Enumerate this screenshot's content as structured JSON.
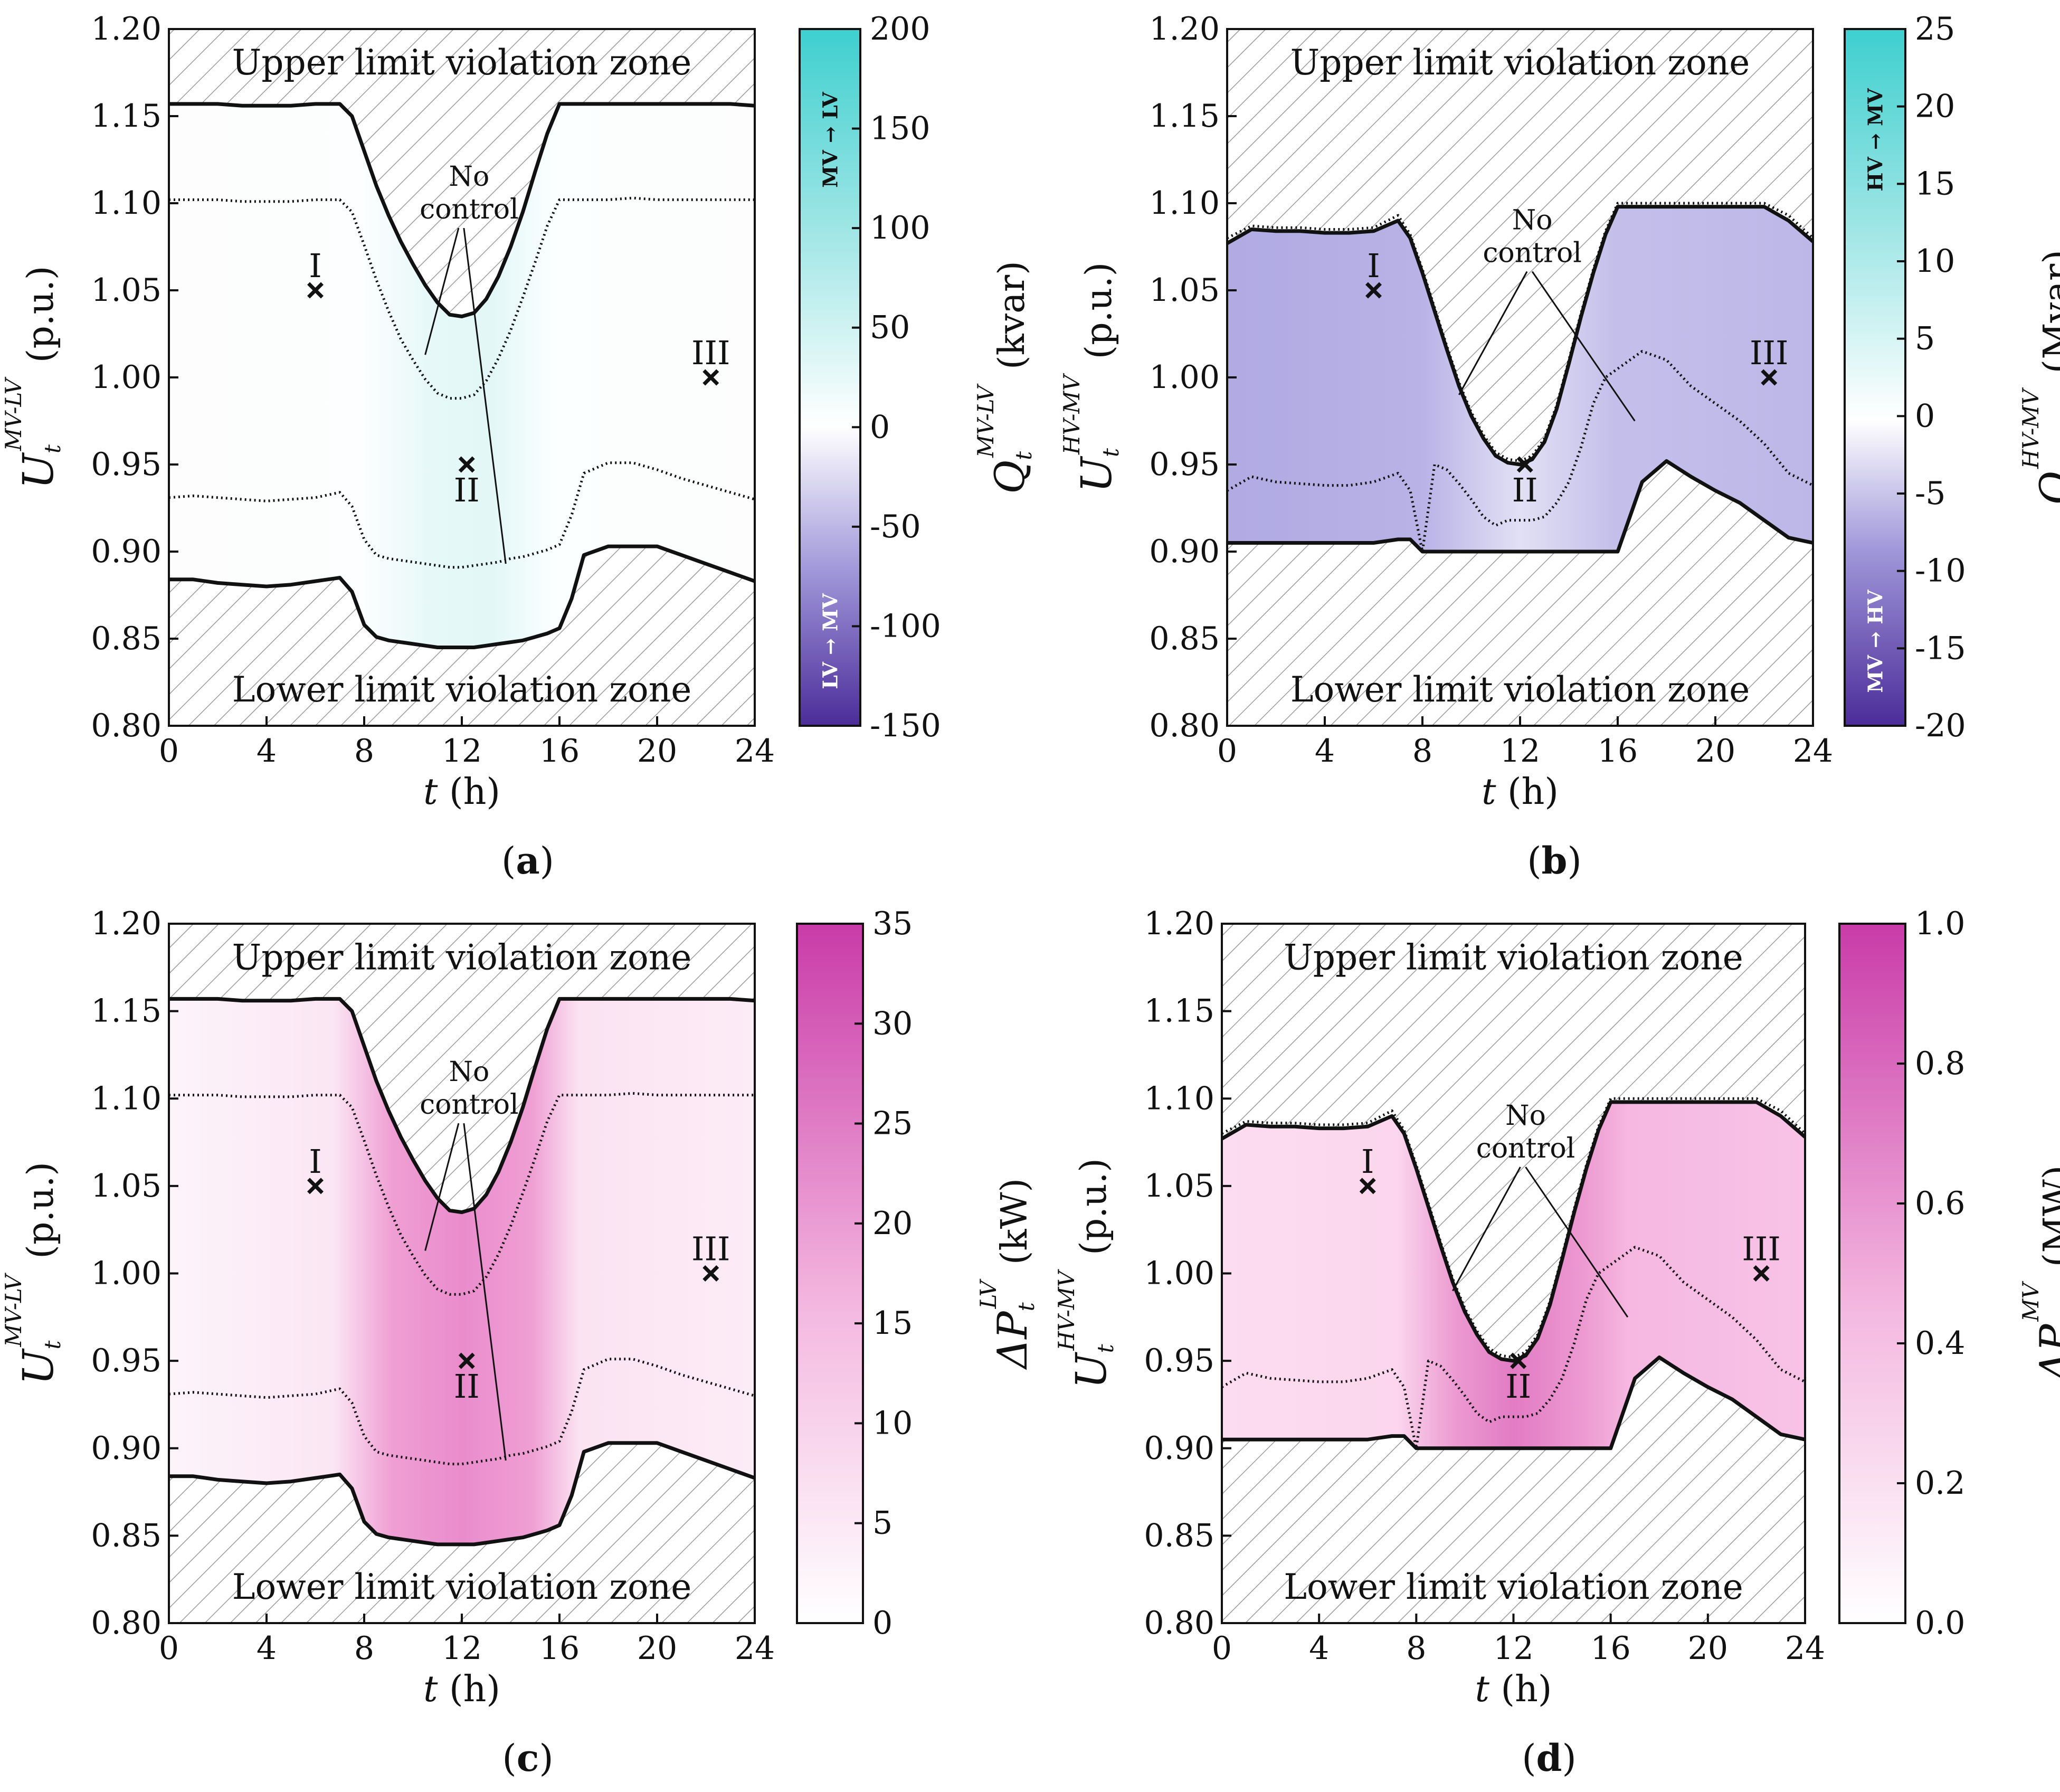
{
  "chart_data": [
    {
      "id": "a",
      "type": "area",
      "caption": "(a)",
      "xlabel": "t (h)",
      "ylabel_main": "U",
      "ylabel_sub": "t",
      "ylabel_sup": "MV-LV",
      "ylabel_unit": "(p.u.)",
      "xlim": [
        0,
        24
      ],
      "ylim": [
        0.8,
        1.2
      ],
      "xticks": [
        "0",
        "4",
        "8",
        "12",
        "16",
        "20",
        "24"
      ],
      "yticks": [
        "0.80",
        "0.85",
        "0.90",
        "0.95",
        "1.00",
        "1.05",
        "1.10",
        "1.15",
        "1.20"
      ],
      "upper_zone_label": "Upper limit violation zone",
      "lower_zone_label": "Lower limit violation zone",
      "annotation": [
        "No",
        "control"
      ],
      "points": [
        {
          "label": "I",
          "x": 6,
          "y": 1.05
        },
        {
          "label": "II",
          "x": 12.2,
          "y": 0.95
        },
        {
          "label": "III",
          "x": 22.2,
          "y": 1.0
        }
      ],
      "x": [
        0,
        1,
        2,
        3,
        4,
        5,
        6,
        7,
        7.5,
        8,
        8.5,
        9,
        9.5,
        10,
        10.5,
        11,
        11.5,
        12,
        12.5,
        13,
        13.5,
        14,
        14.5,
        15,
        15.5,
        16,
        16.5,
        17,
        18,
        19,
        20,
        21,
        22,
        23,
        24
      ],
      "upper_control": [
        1.157,
        1.157,
        1.157,
        1.156,
        1.156,
        1.156,
        1.157,
        1.157,
        1.15,
        1.13,
        1.11,
        1.093,
        1.078,
        1.065,
        1.053,
        1.043,
        1.036,
        1.035,
        1.037,
        1.045,
        1.058,
        1.075,
        1.095,
        1.118,
        1.14,
        1.157,
        1.157,
        1.157,
        1.157,
        1.157,
        1.157,
        1.157,
        1.157,
        1.157,
        1.156
      ],
      "lower_control": [
        0.884,
        0.884,
        0.882,
        0.881,
        0.88,
        0.881,
        0.883,
        0.885,
        0.877,
        0.858,
        0.851,
        0.849,
        0.848,
        0.847,
        0.846,
        0.845,
        0.845,
        0.845,
        0.845,
        0.846,
        0.847,
        0.848,
        0.849,
        0.851,
        0.853,
        0.856,
        0.873,
        0.898,
        0.903,
        0.903,
        0.903,
        0.898,
        0.893,
        0.888,
        0.883
      ],
      "upper_nocontrol": [
        1.102,
        1.102,
        1.102,
        1.101,
        1.101,
        1.101,
        1.102,
        1.102,
        1.095,
        1.076,
        1.056,
        1.038,
        1.022,
        1.01,
        0.999,
        0.991,
        0.988,
        0.988,
        0.99,
        0.998,
        1.011,
        1.027,
        1.046,
        1.066,
        1.087,
        1.102,
        1.102,
        1.102,
        1.102,
        1.103,
        1.102,
        1.102,
        1.102,
        1.102,
        1.102
      ],
      "lower_nocontrol": [
        0.931,
        0.932,
        0.931,
        0.93,
        0.929,
        0.93,
        0.931,
        0.934,
        0.926,
        0.907,
        0.898,
        0.896,
        0.895,
        0.894,
        0.893,
        0.892,
        0.891,
        0.891,
        0.892,
        0.893,
        0.894,
        0.896,
        0.897,
        0.899,
        0.901,
        0.904,
        0.921,
        0.945,
        0.951,
        0.951,
        0.947,
        0.942,
        0.938,
        0.934,
        0.93
      ],
      "colorbar": {
        "label_main": "Q",
        "label_sub": "t",
        "label_sup": "MV-LV",
        "label_unit": "(kvar)",
        "range": [
          -150,
          200
        ],
        "ticks": [
          "200",
          "150",
          "100",
          "50",
          "0",
          "-50",
          "-100",
          "-150"
        ],
        "top_text": "MV → LV",
        "bottom_text": "LV → MV",
        "colors": [
          "#4b2c99",
          "#9f96d9",
          "#ffffff",
          "#9de5e5",
          "#3ecfcf"
        ]
      }
    },
    {
      "id": "b",
      "type": "area",
      "caption": "(b)",
      "xlabel": "t (h)",
      "ylabel_main": "U",
      "ylabel_sub": "t",
      "ylabel_sup": "HV-MV",
      "ylabel_unit": "(p.u.)",
      "xlim": [
        0,
        24
      ],
      "ylim": [
        0.8,
        1.2
      ],
      "xticks": [
        "0",
        "4",
        "8",
        "12",
        "16",
        "20",
        "24"
      ],
      "yticks": [
        "0.80",
        "0.85",
        "0.90",
        "0.95",
        "1.00",
        "1.05",
        "1.10",
        "1.15",
        "1.20"
      ],
      "upper_zone_label": "Upper limit violation zone",
      "lower_zone_label": "Lower limit violation zone",
      "annotation": [
        "No",
        "control"
      ],
      "points": [
        {
          "label": "I",
          "x": 6,
          "y": 1.05
        },
        {
          "label": "II",
          "x": 12.2,
          "y": 0.95
        },
        {
          "label": "III",
          "x": 22.2,
          "y": 1.0
        }
      ],
      "x": [
        0,
        1,
        2,
        3,
        4,
        5,
        6,
        7,
        7.5,
        8,
        8.5,
        9,
        9.5,
        10,
        10.5,
        11,
        11.5,
        12,
        12.5,
        13,
        13.5,
        14,
        14.5,
        15,
        15.5,
        16,
        16.5,
        17,
        18,
        19,
        20,
        21,
        22,
        23,
        24
      ],
      "upper_control": [
        1.077,
        1.085,
        1.084,
        1.084,
        1.083,
        1.083,
        1.084,
        1.09,
        1.08,
        1.06,
        1.038,
        1.016,
        0.995,
        0.978,
        0.965,
        0.955,
        0.951,
        0.95,
        0.953,
        0.963,
        0.982,
        1.008,
        1.035,
        1.06,
        1.082,
        1.098,
        1.098,
        1.098,
        1.098,
        1.098,
        1.098,
        1.098,
        1.098,
        1.09,
        1.078
      ],
      "lower_control": [
        0.905,
        0.905,
        0.905,
        0.905,
        0.905,
        0.905,
        0.905,
        0.907,
        0.907,
        0.9,
        0.9,
        0.9,
        0.9,
        0.9,
        0.9,
        0.9,
        0.9,
        0.9,
        0.9,
        0.9,
        0.9,
        0.9,
        0.9,
        0.9,
        0.9,
        0.9,
        0.92,
        0.94,
        0.952,
        0.943,
        0.935,
        0.928,
        0.918,
        0.908,
        0.905
      ],
      "upper_nocontrol": [
        1.08,
        1.087,
        1.086,
        1.086,
        1.085,
        1.085,
        1.086,
        1.093,
        1.082,
        1.062,
        1.04,
        1.018,
        0.997,
        0.98,
        0.967,
        0.957,
        0.953,
        0.952,
        0.955,
        0.965,
        0.984,
        1.01,
        1.037,
        1.062,
        1.084,
        1.1,
        1.1,
        1.1,
        1.1,
        1.1,
        1.1,
        1.1,
        1.1,
        1.093,
        1.08
      ],
      "lower_nocontrol": [
        0.935,
        0.943,
        0.94,
        0.939,
        0.938,
        0.938,
        0.94,
        0.945,
        0.935,
        0.9,
        0.95,
        0.947,
        0.939,
        0.93,
        0.92,
        0.915,
        0.918,
        0.918,
        0.918,
        0.92,
        0.928,
        0.94,
        0.96,
        0.985,
        1.0,
        1.005,
        1.01,
        1.015,
        1.01,
        0.995,
        0.985,
        0.975,
        0.962,
        0.945,
        0.938
      ],
      "colorbar": {
        "label_main": "Q",
        "label_sub": "t",
        "label_sup": "HV-MV",
        "label_unit": "(Mvar)",
        "range": [
          -20,
          25
        ],
        "ticks": [
          "25",
          "20",
          "15",
          "10",
          "5",
          "0",
          "-5",
          "-10",
          "-15",
          "-20"
        ],
        "top_text": "HV → MV",
        "bottom_text": "MV → HV",
        "colors": [
          "#4b2c99",
          "#9f96d9",
          "#ffffff",
          "#9de5e5",
          "#3ecfcf"
        ]
      }
    },
    {
      "id": "c",
      "type": "area",
      "caption": "(c)",
      "xlabel": "t (h)",
      "ylabel_main": "U",
      "ylabel_sub": "t",
      "ylabel_sup": "MV-LV",
      "ylabel_unit": "(p.u.)",
      "xlim": [
        0,
        24
      ],
      "ylim": [
        0.8,
        1.2
      ],
      "xticks": [
        "0",
        "4",
        "8",
        "12",
        "16",
        "20",
        "24"
      ],
      "yticks": [
        "0.80",
        "0.85",
        "0.90",
        "0.95",
        "1.00",
        "1.05",
        "1.10",
        "1.15",
        "1.20"
      ],
      "upper_zone_label": "Upper limit violation zone",
      "lower_zone_label": "Lower limit violation zone",
      "annotation": [
        "No",
        "control"
      ],
      "points": [
        {
          "label": "I",
          "x": 6,
          "y": 1.05
        },
        {
          "label": "II",
          "x": 12.2,
          "y": 0.95
        },
        {
          "label": "III",
          "x": 22.2,
          "y": 1.0
        }
      ],
      "x": [
        0,
        1,
        2,
        3,
        4,
        5,
        6,
        7,
        7.5,
        8,
        8.5,
        9,
        9.5,
        10,
        10.5,
        11,
        11.5,
        12,
        12.5,
        13,
        13.5,
        14,
        14.5,
        15,
        15.5,
        16,
        16.5,
        17,
        18,
        19,
        20,
        21,
        22,
        23,
        24
      ],
      "upper_control": [
        1.157,
        1.157,
        1.157,
        1.156,
        1.156,
        1.156,
        1.157,
        1.157,
        1.15,
        1.13,
        1.11,
        1.093,
        1.078,
        1.065,
        1.053,
        1.043,
        1.036,
        1.035,
        1.037,
        1.045,
        1.058,
        1.075,
        1.095,
        1.118,
        1.14,
        1.157,
        1.157,
        1.157,
        1.157,
        1.157,
        1.157,
        1.157,
        1.157,
        1.157,
        1.156
      ],
      "lower_control": [
        0.884,
        0.884,
        0.882,
        0.881,
        0.88,
        0.881,
        0.883,
        0.885,
        0.877,
        0.858,
        0.851,
        0.849,
        0.848,
        0.847,
        0.846,
        0.845,
        0.845,
        0.845,
        0.845,
        0.846,
        0.847,
        0.848,
        0.849,
        0.851,
        0.853,
        0.856,
        0.873,
        0.898,
        0.903,
        0.903,
        0.903,
        0.898,
        0.893,
        0.888,
        0.883
      ],
      "upper_nocontrol": [
        1.102,
        1.102,
        1.102,
        1.101,
        1.101,
        1.101,
        1.102,
        1.102,
        1.095,
        1.076,
        1.056,
        1.038,
        1.022,
        1.01,
        0.999,
        0.991,
        0.988,
        0.988,
        0.99,
        0.998,
        1.011,
        1.027,
        1.046,
        1.066,
        1.087,
        1.102,
        1.102,
        1.102,
        1.102,
        1.103,
        1.102,
        1.102,
        1.102,
        1.102,
        1.102
      ],
      "lower_nocontrol": [
        0.931,
        0.932,
        0.931,
        0.93,
        0.929,
        0.93,
        0.931,
        0.934,
        0.926,
        0.907,
        0.898,
        0.896,
        0.895,
        0.894,
        0.893,
        0.892,
        0.891,
        0.891,
        0.892,
        0.893,
        0.894,
        0.896,
        0.897,
        0.899,
        0.901,
        0.904,
        0.921,
        0.945,
        0.951,
        0.951,
        0.947,
        0.942,
        0.938,
        0.934,
        0.93
      ],
      "colorbar": {
        "label_main": "ΔP",
        "label_sub": "t",
        "label_sup": "LV",
        "label_unit": "(kW)",
        "range": [
          0,
          35
        ],
        "ticks": [
          "35",
          "30",
          "25",
          "20",
          "15",
          "10",
          "5",
          "0"
        ],
        "colors": [
          "#ffffff",
          "#f4b8e0",
          "#c93ba8"
        ]
      }
    },
    {
      "id": "d",
      "type": "area",
      "caption": "(d)",
      "xlabel": "t (h)",
      "ylabel_main": "U",
      "ylabel_sub": "t",
      "ylabel_sup": "HV-MV",
      "ylabel_unit": "(p.u.)",
      "xlim": [
        0,
        24
      ],
      "ylim": [
        0.8,
        1.2
      ],
      "xticks": [
        "0",
        "4",
        "8",
        "12",
        "16",
        "20",
        "24"
      ],
      "yticks": [
        "0.80",
        "0.85",
        "0.90",
        "0.95",
        "1.00",
        "1.05",
        "1.10",
        "1.15",
        "1.20"
      ],
      "upper_zone_label": "Upper limit violation zone",
      "lower_zone_label": "Lower limit violation zone",
      "annotation": [
        "No",
        "control"
      ],
      "points": [
        {
          "label": "I",
          "x": 6,
          "y": 1.05
        },
        {
          "label": "II",
          "x": 12.2,
          "y": 0.95
        },
        {
          "label": "III",
          "x": 22.2,
          "y": 1.0
        }
      ],
      "x": [
        0,
        1,
        2,
        3,
        4,
        5,
        6,
        7,
        7.5,
        8,
        8.5,
        9,
        9.5,
        10,
        10.5,
        11,
        11.5,
        12,
        12.5,
        13,
        13.5,
        14,
        14.5,
        15,
        15.5,
        16,
        16.5,
        17,
        18,
        19,
        20,
        21,
        22,
        23,
        24
      ],
      "upper_control": [
        1.077,
        1.085,
        1.084,
        1.084,
        1.083,
        1.083,
        1.084,
        1.09,
        1.08,
        1.06,
        1.038,
        1.016,
        0.995,
        0.978,
        0.965,
        0.955,
        0.951,
        0.95,
        0.953,
        0.963,
        0.982,
        1.008,
        1.035,
        1.06,
        1.082,
        1.098,
        1.098,
        1.098,
        1.098,
        1.098,
        1.098,
        1.098,
        1.098,
        1.09,
        1.078
      ],
      "lower_control": [
        0.905,
        0.905,
        0.905,
        0.905,
        0.905,
        0.905,
        0.905,
        0.907,
        0.907,
        0.9,
        0.9,
        0.9,
        0.9,
        0.9,
        0.9,
        0.9,
        0.9,
        0.9,
        0.9,
        0.9,
        0.9,
        0.9,
        0.9,
        0.9,
        0.9,
        0.9,
        0.92,
        0.94,
        0.952,
        0.943,
        0.935,
        0.928,
        0.918,
        0.908,
        0.905
      ],
      "upper_nocontrol": [
        1.08,
        1.087,
        1.086,
        1.086,
        1.085,
        1.085,
        1.086,
        1.093,
        1.082,
        1.062,
        1.04,
        1.018,
        0.997,
        0.98,
        0.967,
        0.957,
        0.953,
        0.952,
        0.955,
        0.965,
        0.984,
        1.01,
        1.037,
        1.062,
        1.084,
        1.1,
        1.1,
        1.1,
        1.1,
        1.1,
        1.1,
        1.1,
        1.1,
        1.093,
        1.08
      ],
      "lower_nocontrol": [
        0.935,
        0.943,
        0.94,
        0.939,
        0.938,
        0.938,
        0.94,
        0.945,
        0.935,
        0.9,
        0.95,
        0.947,
        0.939,
        0.93,
        0.92,
        0.915,
        0.918,
        0.918,
        0.918,
        0.92,
        0.928,
        0.94,
        0.96,
        0.985,
        1.0,
        1.005,
        1.01,
        1.015,
        1.01,
        0.995,
        0.985,
        0.975,
        0.962,
        0.945,
        0.938
      ],
      "colorbar": {
        "label_main": "ΔP",
        "label_sub": "t",
        "label_sup": "MV",
        "label_unit": "(MW)",
        "range": [
          0,
          1.0
        ],
        "ticks": [
          "1.0",
          "0.8",
          "0.6",
          "0.4",
          "0.2",
          "0.0"
        ],
        "colors": [
          "#ffffff",
          "#f4b8e0",
          "#c93ba8"
        ]
      }
    }
  ]
}
